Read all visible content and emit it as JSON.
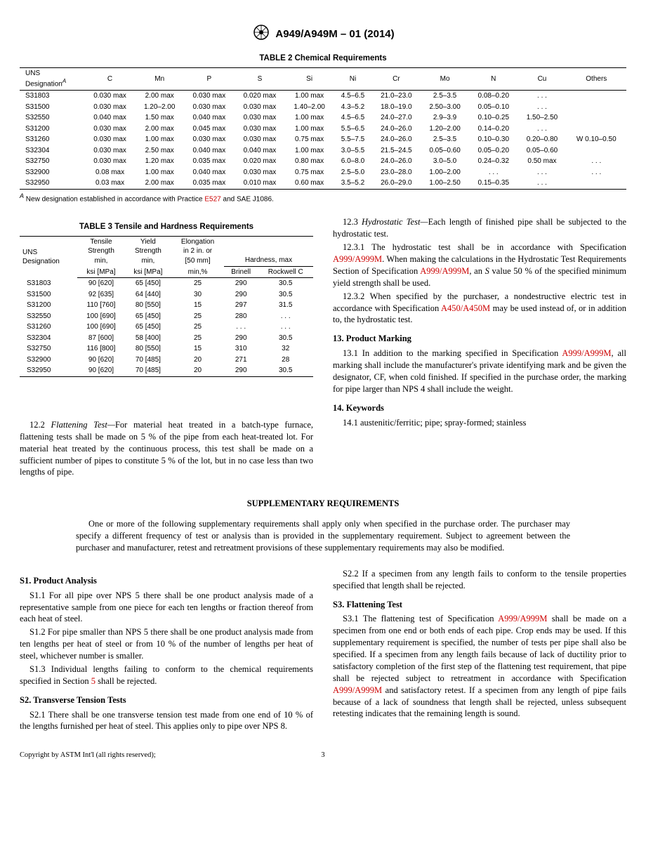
{
  "header": {
    "standard": "A949/A949M – 01 (2014)"
  },
  "table2": {
    "title": "TABLE 2 Chemical Requirements",
    "columns": [
      "UNS Designation",
      "C",
      "Mn",
      "P",
      "S",
      "Si",
      "Ni",
      "Cr",
      "Mo",
      "N",
      "Cu",
      "Others"
    ],
    "footnote_sup": "A",
    "rows": [
      [
        "S31803",
        "0.030 max",
        "2.00 max",
        "0.030 max",
        "0.020 max",
        "1.00 max",
        "4.5–6.5",
        "21.0–23.0",
        "2.5–3.5",
        "0.08–0.20",
        ". . .",
        ""
      ],
      [
        "S31500",
        "0.030 max",
        "1.20–2.00",
        "0.030 max",
        "0.030 max",
        "1.40–2.00",
        "4.3–5.2",
        "18.0–19.0",
        "2.50–3.00",
        "0.05–0.10",
        ". . .",
        ""
      ],
      [
        "S32550",
        "0.040 max",
        "1.50 max",
        "0.040 max",
        "0.030 max",
        "1.00 max",
        "4.5–6.5",
        "24.0–27.0",
        "2.9–3.9",
        "0.10–0.25",
        "1.50–2.50",
        ""
      ],
      [
        "S31200",
        "0.030 max",
        "2.00 max",
        "0.045 max",
        "0.030 max",
        "1.00 max",
        "5.5–6.5",
        "24.0–26.0",
        "1.20–2.00",
        "0.14–0.20",
        ". . .",
        ""
      ],
      [
        "S31260",
        "0.030 max",
        "1.00 max",
        "0.030 max",
        "0.030 max",
        "0.75 max",
        "5.5–7.5",
        "24.0–26.0",
        "2.5–3.5",
        "0.10–0.30",
        "0.20–0.80",
        "W 0.10–0.50"
      ],
      [
        "S32304",
        "0.030 max",
        "2.50 max",
        "0.040 max",
        "0.040 max",
        "1.00 max",
        "3.0–5.5",
        "21.5–24.5",
        "0.05–0.60",
        "0.05–0.20",
        "0.05–0.60",
        ""
      ],
      [
        "S32750",
        "0.030 max",
        "1.20 max",
        "0.035 max",
        "0.020 max",
        "0.80 max",
        "6.0–8.0",
        "24.0–26.0",
        "3.0–5.0",
        "0.24–0.32",
        "0.50 max",
        ". . ."
      ],
      [
        "S32900",
        "0.08   max",
        "1.00 max",
        "0.040 max",
        "0.030 max",
        "0.75 max",
        "2.5–5.0",
        "23.0–28.0",
        "1.00–2.00",
        ". . .",
        ". . .",
        ". . ."
      ],
      [
        "S32950",
        "0.03   max",
        "2.00 max",
        "0.035 max",
        "0.010 max",
        "0.60 max",
        "3.5–5.2",
        "26.0–29.0",
        "1.00–2.50",
        "0.15–0.35",
        ". . .",
        ""
      ]
    ],
    "footnote_pre": " New designation established in accordance with Practice ",
    "footnote_link": "E527",
    "footnote_post": " and SAE J1086."
  },
  "table3": {
    "title": "TABLE 3 Tensile and Hardness Requirements",
    "headers": {
      "uns": "UNS Designation",
      "tensile_a": "Tensile Strength min,",
      "tensile_b": "ksi [MPa]",
      "yield_a": "Yield Strength min,",
      "yield_b": "ksi [MPa]",
      "elong_a": "Elongation in 2 in. or [50 mm]",
      "elong_b": "min,%",
      "hardness": "Hardness, max",
      "brinell": "Brinell",
      "rockwell": "Rockwell C"
    },
    "rows": [
      [
        "S31803",
        "90 [620]",
        "65 [450]",
        "25",
        "290",
        "30.5"
      ],
      [
        "S31500",
        "92 [635]",
        "64 [440]",
        "30",
        "290",
        "30.5"
      ],
      [
        "S31200",
        "110 [760]",
        "80 [550]",
        "15",
        "297",
        "31.5"
      ],
      [
        "S32550",
        "100 [690]",
        "65 [450]",
        "25",
        "280",
        ". . ."
      ],
      [
        "S31260",
        "100 [690]",
        "65 [450]",
        "25",
        ". . .",
        ". . ."
      ],
      [
        "S32304",
        "87 [600]",
        "58 [400]",
        "25",
        "290",
        "30.5"
      ],
      [
        "S32750",
        "116 [800]",
        "80 [550]",
        "15",
        "310",
        "32"
      ],
      [
        "S32900",
        "90 [620]",
        "70 [485]",
        "20",
        "271",
        "28"
      ],
      [
        "S32950",
        "90 [620]",
        "70 [485]",
        "20",
        "290",
        "30.5"
      ]
    ]
  },
  "body": {
    "p12_2_lead": "12.2 ",
    "p12_2_em": "Flattening Test—",
    "p12_2": "For material heat treated in a batch-type furnace, flattening tests shall be made on 5 % of the pipe from each heat-treated lot. For material heat treated by the continuous process, this test shall be made on a sufficient number of pipes to constitute 5 % of the lot, but in no case less than two lengths of pipe.",
    "p12_3_lead": "12.3 ",
    "p12_3_em": "Hydrostatic Test—",
    "p12_3": "Each length of finished pipe shall be subjected to the hydrostatic test.",
    "p12_3_1a": "12.3.1 The hydrostatic test shall be in accordance with Specification ",
    "p12_3_1b": ". When making the calculations in the Hydrostatic Test Requirements Section of Specification ",
    "p12_3_1c": ", an ",
    "p12_3_1d": " value 50 % of the specified minimum yield strength shall be used.",
    "p12_3_2a": "12.3.2 When specified by the purchaser, a nondestructive electric test in accordance with Specification ",
    "p12_3_2b": " may be used instead of, or in addition to, the hydrostatic test.",
    "h13": "13.  Product Marking",
    "p13_1a": "13.1 In addition to the marking specified in Specification ",
    "p13_1b": ", all marking shall include the manufacturer's private identifying mark and be given the designator, CF, when cold finished. If specified in the purchase order, the marking for pipe larger than NPS 4 shall include the weight.",
    "h14": "14.  Keywords",
    "p14_1": "14.1 austenitic/ferritic; pipe; spray-formed; stainless",
    "link_a999": "A999/A999M",
    "link_a450": "A450/A450M",
    "s_var": "S"
  },
  "supp": {
    "title": "SUPPLEMENTARY REQUIREMENTS",
    "intro": "One or more of the following supplementary requirements shall apply only when specified in the purchase order. The purchaser may specify a different frequency of test or analysis than is provided in the supplementary requirement. Subject to agreement between the purchaser and manufacturer, retest and retreatment provisions of these supplementary requirements may also be modified.",
    "s1h": "S1.  Product Analysis",
    "s1_1": "S1.1 For all pipe over NPS 5 there shall be one product analysis made of a representative sample from one piece for each ten lengths or fraction thereof from each heat of steel.",
    "s1_2": "S1.2 For pipe smaller than NPS 5 there shall be one product analysis made from ten lengths per heat of steel or from 10 % of the number of lengths per heat of steel, whichever number is smaller.",
    "s1_3a": "S1.3 Individual lengths failing to conform to the chemical requirements specified in Section ",
    "s1_3link": "5",
    "s1_3b": " shall be rejected.",
    "s2h": "S2.  Transverse Tension Tests",
    "s2_1": "S2.1 There shall be one transverse tension test made from one end of 10 % of the lengths furnished per heat of steel. This applies only to pipe over NPS 8.",
    "s2_2": "S2.2 If a specimen from any length fails to conform to the tensile properties specified that length shall be rejected.",
    "s3h": "S3.  Flattening Test",
    "s3_1a": "S3.1 The flattening test of Specification ",
    "s3_1b": " shall be made on a specimen from one end or both ends of each pipe. Crop ends may be used. If this supplementary requirement is specified, the number of tests per pipe shall also be specified. If a specimen from any length fails because of lack of ductility prior to satisfactory completion of the first step of the flattening test requirement, that pipe shall be rejected subject to retreatment in accordance with Specification ",
    "s3_1c": " and satisfactory retest. If a specimen from any length of pipe fails because of a lack of soundness that length shall be rejected, unless subsequent retesting indicates that the remaining length is sound."
  },
  "footer": {
    "copyright": "Copyright by ASTM Int'l (all rights reserved);",
    "page": "3"
  }
}
